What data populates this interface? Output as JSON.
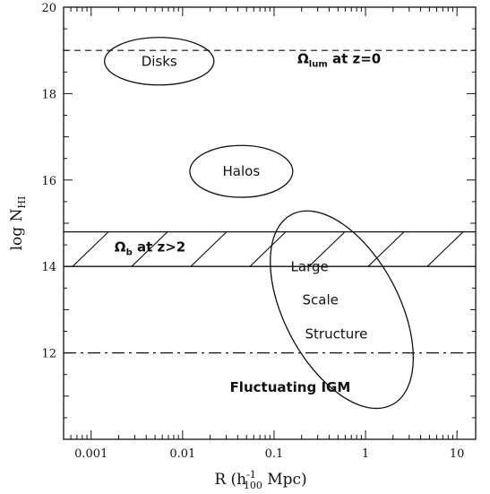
{
  "chart_data": {
    "type": "scatter",
    "xlabel": "R (h",
    "xlabel_sup": "-1",
    "xlabel_sub": "100",
    "xlabel_tail": " Mpc)",
    "ylabel": "log N",
    "ylabel_sub": "HI",
    "xscale": "log",
    "xlim": [
      0.0005,
      16
    ],
    "ylim": [
      10,
      20
    ],
    "x_ticks": [
      0.001,
      0.01,
      0.1,
      1,
      10
    ],
    "x_tick_labels": [
      "0.001",
      "0.01",
      "0.1",
      "1",
      "10"
    ],
    "y_ticks": [
      12,
      14,
      16,
      18,
      20
    ],
    "y_tick_labels": [
      "12",
      "14",
      "16",
      "18",
      "20"
    ],
    "grid": false,
    "reference_lines": [
      {
        "name": "omega_lum",
        "y": 19.0,
        "style": "dashed"
      },
      {
        "name": "omega_b_top",
        "y": 14.8,
        "style": "solid"
      },
      {
        "name": "omega_b_bottom",
        "y": 14.0,
        "style": "solid"
      },
      {
        "name": "fluctuating_igm",
        "y": 12.0,
        "style": "dash-dot"
      }
    ],
    "hatched_band": {
      "y_min": 14.0,
      "y_max": 14.8
    },
    "regions": [
      {
        "label": "Disks",
        "center_x": 0.0055,
        "center_y": 18.75,
        "x_range": [
          0.0014,
          0.022
        ],
        "y_range": [
          18.2,
          19.3
        ]
      },
      {
        "label": "Halos",
        "center_x": 0.042,
        "center_y": 16.2,
        "x_range": [
          0.012,
          0.16
        ],
        "y_range": [
          15.6,
          16.8
        ]
      }
    ],
    "lss_region": {
      "label_lines": [
        "Large",
        "Scale",
        "Structure"
      ],
      "center_x": 0.55,
      "center_y": 13.0
    },
    "annotations": {
      "omega_lum": {
        "symbol": "Ω",
        "sub": "lum",
        "text": " at z=0"
      },
      "omega_b": {
        "symbol": "Ω",
        "sub": "b",
        "text": " at z>2"
      },
      "fluctuating_igm": "Fluctuating IGM"
    }
  }
}
